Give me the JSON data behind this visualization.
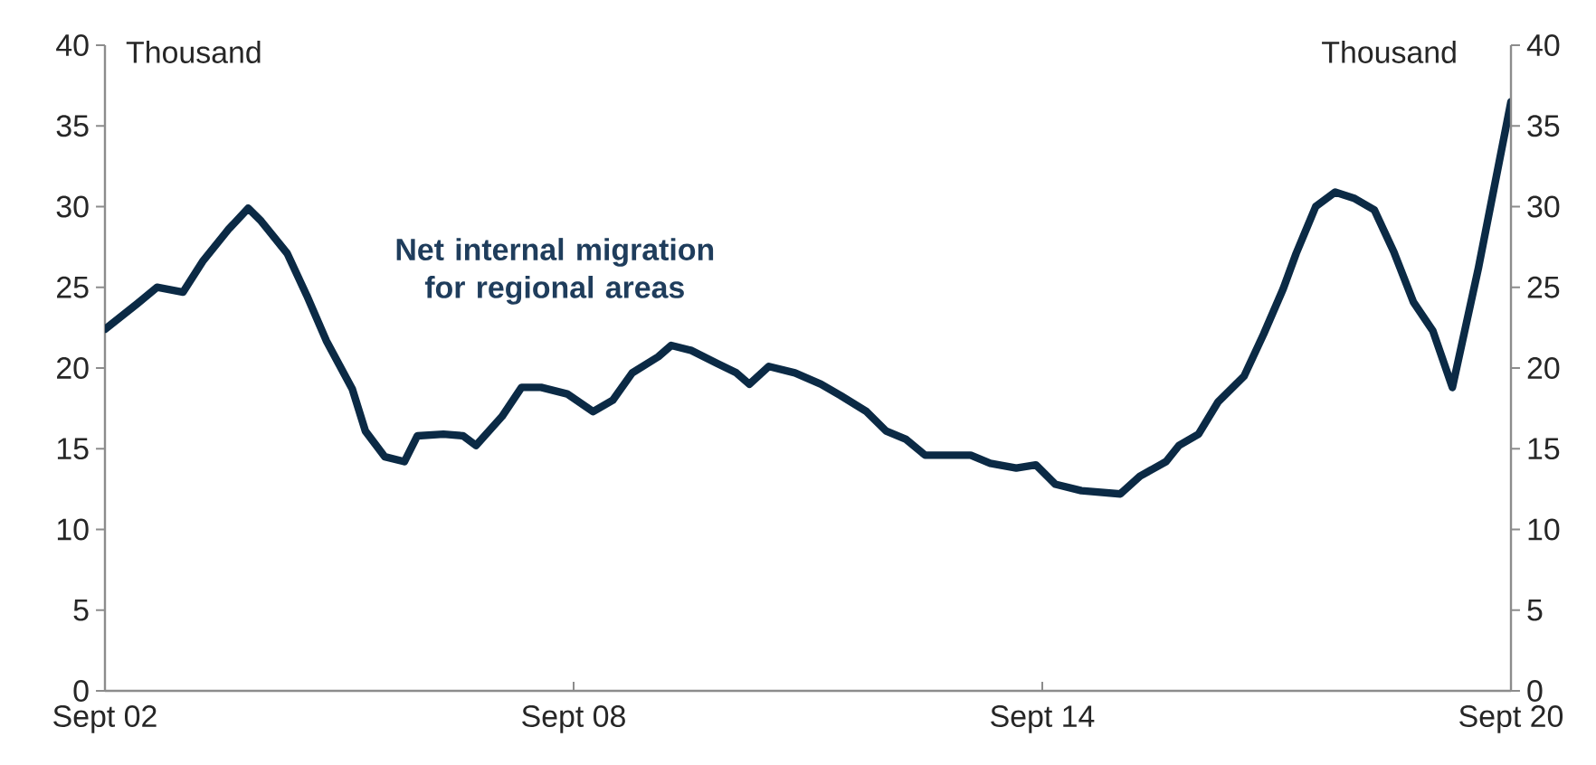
{
  "chart_data": {
    "type": "line",
    "ylabel": "Thousand",
    "y2label": "Thousand",
    "annotations": [
      "Net internal migration for regional areas"
    ],
    "x": [
      "2002-09",
      "2003-02",
      "2003-05",
      "2003-09",
      "2003-12",
      "2004-04",
      "2004-07",
      "2004-09",
      "2005-01",
      "2005-04",
      "2005-07",
      "2005-11",
      "2006-01",
      "2006-04",
      "2006-07",
      "2006-09",
      "2007-01",
      "2007-04",
      "2007-06",
      "2007-10",
      "2008-01",
      "2008-04",
      "2008-08",
      "2008-12",
      "2009-03",
      "2009-06",
      "2009-10",
      "2009-12",
      "2010-03",
      "2010-07",
      "2010-10",
      "2010-12",
      "2011-03",
      "2011-07",
      "2011-11",
      "2012-02",
      "2012-06",
      "2012-09",
      "2012-12",
      "2013-03",
      "2013-10",
      "2014-01",
      "2014-05",
      "2014-08",
      "2014-11",
      "2015-03",
      "2015-09",
      "2015-12",
      "2016-04",
      "2016-06",
      "2016-09",
      "2016-12",
      "2017-04",
      "2017-07",
      "2017-10",
      "2017-12",
      "2018-03",
      "2018-06",
      "2018-09",
      "2018-12",
      "2019-03",
      "2019-06",
      "2019-09",
      "2019-12",
      "2020-04",
      "2020-09"
    ],
    "series": [
      {
        "color": "#0b2a45",
        "values": [
          22.4,
          24,
          25,
          24.7,
          26.6,
          28.6,
          29.9,
          29.1,
          27.1,
          24.5,
          21.7,
          18.7,
          16.1,
          14.5,
          14.2,
          15.8,
          15.9,
          15.8,
          15.2,
          17,
          18.8,
          18.8,
          18.4,
          17.3,
          18,
          19.7,
          20.7,
          21.4,
          21.1,
          20.3,
          19.7,
          19,
          20.1,
          19.7,
          19,
          18.3,
          17.3,
          16.1,
          15.6,
          14.6,
          14.6,
          14.1,
          13.8,
          14,
          12.8,
          12.4,
          12.2,
          13.3,
          14.2,
          15.2,
          15.9,
          17.9,
          19.5,
          22.1,
          24.9,
          27.1,
          30,
          30.9,
          30.5,
          29.8,
          27.2,
          24.1,
          22.3,
          18.8,
          26.2,
          36.5
        ]
      }
    ],
    "xlim": [
      "2002-09",
      "2020-09"
    ],
    "xticks": [
      {
        "value": "2002-09",
        "label": "Sept 02"
      },
      {
        "value": "2008-09",
        "label": "Sept 08"
      },
      {
        "value": "2014-09",
        "label": "Sept 14"
      },
      {
        "value": "2020-09",
        "label": "Sept 20"
      }
    ],
    "ylim": [
      0,
      40
    ],
    "yticks": [
      0,
      5,
      10,
      15,
      20,
      25,
      30,
      35,
      40
    ],
    "y2lim": [
      0,
      40
    ],
    "y2ticks": [
      0,
      5,
      10,
      15,
      20,
      25,
      30,
      35,
      40
    ],
    "grid": false,
    "line_style": "solid",
    "marker": "none"
  }
}
